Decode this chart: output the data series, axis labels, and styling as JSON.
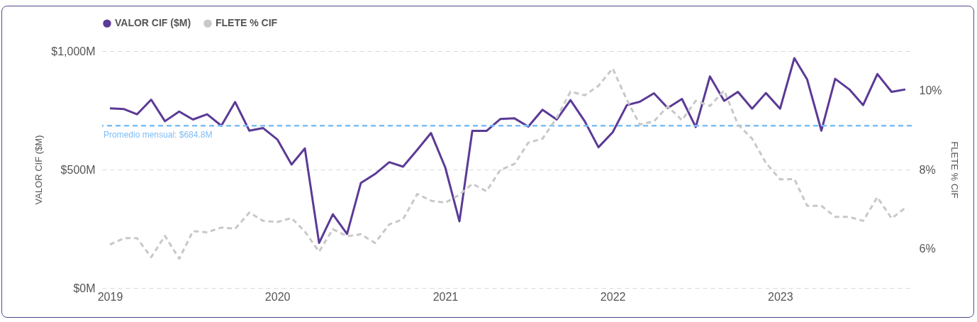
{
  "chart_data": {
    "type": "line",
    "ylabel": "VALOR CIF ($M)",
    "y2label": "FLETE % CIF",
    "x": [
      "2019-01",
      "2019-02",
      "2019-03",
      "2019-04",
      "2019-05",
      "2019-06",
      "2019-07",
      "2019-08",
      "2019-09",
      "2019-10",
      "2019-11",
      "2019-12",
      "2020-01",
      "2020-02",
      "2020-03",
      "2020-04",
      "2020-05",
      "2020-06",
      "2020-07",
      "2020-08",
      "2020-09",
      "2020-10",
      "2020-11",
      "2020-12",
      "2021-01",
      "2021-02",
      "2021-03",
      "2021-04",
      "2021-05",
      "2021-06",
      "2021-07",
      "2021-08",
      "2021-09",
      "2021-10",
      "2021-11",
      "2021-12",
      "2022-01",
      "2022-02",
      "2022-03",
      "2022-04",
      "2022-05",
      "2022-06",
      "2022-07",
      "2022-08",
      "2022-09",
      "2022-10",
      "2022-11",
      "2022-12",
      "2023-01",
      "2023-02",
      "2023-03",
      "2023-04",
      "2023-05",
      "2023-06",
      "2023-07",
      "2023-08",
      "2023-09",
      "2023-10"
    ],
    "series": [
      {
        "name": "VALOR CIF ($M)",
        "color": "#5b3a96",
        "values": [
          758,
          755,
          733,
          795,
          704,
          745,
          711,
          733,
          685,
          785,
          664,
          675,
          627,
          521,
          589,
          190,
          311,
          228,
          443,
          481,
          531,
          512,
          583,
          654,
          509,
          281,
          663,
          663,
          713,
          716,
          681,
          752,
          711,
          793,
          704,
          594,
          657,
          772,
          786,
          822,
          760,
          798,
          679,
          893,
          790,
          828,
          757,
          823,
          757,
          970,
          880,
          664,
          883,
          838,
          772,
          903,
          828,
          838
        ]
      },
      {
        "name": "FLETE % CIF",
        "color": "#c8c8c8",
        "axis": "y2",
        "line_style": "dashed",
        "values": [
          6.1,
          6.26,
          6.26,
          5.78,
          6.32,
          5.74,
          6.44,
          6.41,
          6.53,
          6.5,
          6.91,
          6.7,
          6.67,
          6.77,
          6.43,
          5.92,
          6.49,
          6.31,
          6.36,
          6.14,
          6.61,
          6.74,
          7.38,
          7.21,
          7.16,
          7.36,
          7.64,
          7.45,
          7.99,
          8.14,
          8.68,
          8.78,
          9.31,
          9.97,
          9.88,
          10.12,
          10.56,
          9.76,
          9.14,
          9.22,
          9.6,
          9.25,
          9.74,
          9.61,
          10.0,
          9.14,
          8.78,
          8.17,
          7.75,
          7.76,
          7.08,
          7.08,
          6.8,
          6.8,
          6.7,
          7.3,
          6.76,
          7.03
        ]
      }
    ],
    "xlim": [
      "2018-12-15",
      "2023-10-15"
    ],
    "xticks": [
      "2019",
      "2020",
      "2021",
      "2022",
      "2023"
    ],
    "ylim": [
      0,
      1000
    ],
    "yticks": [
      {
        "value": 0,
        "label": "$0M"
      },
      {
        "value": 500,
        "label": "$500M"
      },
      {
        "value": 1000,
        "label": "$1,000M"
      }
    ],
    "y2lim": [
      5,
      11
    ],
    "y2ticks": [
      {
        "value": 6,
        "label": "6%"
      },
      {
        "value": 8,
        "label": "8%"
      },
      {
        "value": 10,
        "label": "10%"
      }
    ],
    "ref_lines": [
      {
        "axis": "y",
        "value": 684.8,
        "label": "Promedio mensual: $684.8M",
        "color": "#7dbdf5",
        "line_style": "dashed"
      }
    ],
    "grid": "y",
    "legend": "top left",
    "line_style": "solid"
  }
}
